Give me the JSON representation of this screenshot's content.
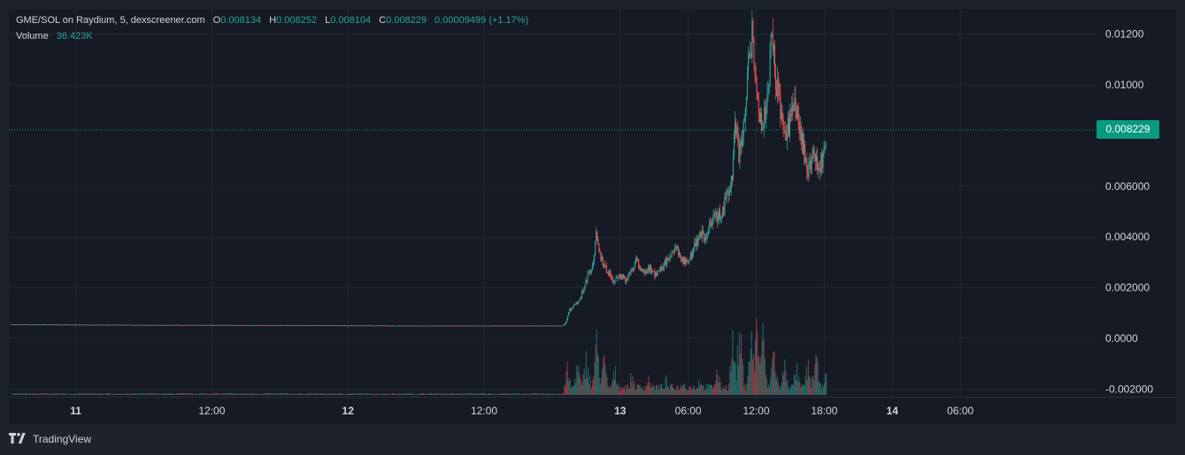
{
  "legend": {
    "title": "GME/SOL on Raydium, 5, dexscreener.com",
    "o_label": "O",
    "o_value": "0.008134",
    "h_label": "H",
    "h_value": "0.008252",
    "l_label": "L",
    "l_value": "0.008104",
    "c_label": "C",
    "c_value": "0.008229",
    "change": "0.00009499 (+1.17%)",
    "volume_label": "Volume",
    "volume_value": "36.423K"
  },
  "last_price": "0.008229",
  "branding": {
    "name": "TradingView",
    "icon": "tradingview-logo-icon"
  },
  "colors": {
    "up": "#26a69a",
    "down": "#ef5350",
    "background": "#161a25",
    "grid": "#232733",
    "axis_text": "#d1d4dc",
    "price_tag": "#089981"
  },
  "chart_data": {
    "type": "candlestick",
    "interval": "5",
    "y_tick_labels": [
      "0.01200",
      "0.01000",
      "0.008229",
      "0.006000",
      "0.004000",
      "0.002000",
      "0.0000",
      "-0.002000"
    ],
    "y_ticks": [
      0.012,
      0.01,
      0.006,
      0.004,
      0.002,
      0.0,
      -0.002
    ],
    "ylim": [
      -0.0023,
      0.013
    ],
    "x_tick_labels": [
      "11",
      "12:00",
      "12",
      "12:00",
      "13",
      "06:00",
      "12:00",
      "18:00",
      "14",
      "06:00"
    ],
    "x_ticks_hours": [
      24,
      36,
      48,
      60,
      72,
      78,
      84,
      90,
      96,
      102
    ],
    "x_range_hours": [
      18.1,
      114
    ],
    "x_bold_labels": [
      "11",
      "12",
      "13",
      "14"
    ],
    "price_path": [
      [
        18.5,
        0.00055
      ],
      [
        30,
        0.00053
      ],
      [
        42,
        0.00052
      ],
      [
        54,
        0.0005
      ],
      [
        66.9,
        0.0005
      ],
      [
        67.2,
        0.0006
      ],
      [
        67.5,
        0.0011
      ],
      [
        68,
        0.0013
      ],
      [
        68.5,
        0.0016
      ],
      [
        68.8,
        0.002
      ],
      [
        69.2,
        0.0026
      ],
      [
        69.7,
        0.003
      ],
      [
        69.9,
        0.0043
      ],
      [
        70.1,
        0.0034
      ],
      [
        70.5,
        0.0029
      ],
      [
        71,
        0.0026
      ],
      [
        71.5,
        0.0022
      ],
      [
        72,
        0.0025
      ],
      [
        72.5,
        0.0023
      ],
      [
        73,
        0.0027
      ],
      [
        73.4,
        0.0031
      ],
      [
        74,
        0.0025
      ],
      [
        74.5,
        0.0028
      ],
      [
        75,
        0.0025
      ],
      [
        75.5,
        0.0027
      ],
      [
        76,
        0.003
      ],
      [
        76.5,
        0.0032
      ],
      [
        77,
        0.0035
      ],
      [
        77.5,
        0.0031
      ],
      [
        78,
        0.003
      ],
      [
        78.5,
        0.0036
      ],
      [
        79,
        0.0041
      ],
      [
        79.5,
        0.004
      ],
      [
        80,
        0.0045
      ],
      [
        80.5,
        0.0048
      ],
      [
        81,
        0.0049
      ],
      [
        81.5,
        0.0058
      ],
      [
        81.9,
        0.0065
      ],
      [
        82.1,
        0.0088
      ],
      [
        82.5,
        0.0072
      ],
      [
        83,
        0.009
      ],
      [
        83.4,
        0.0112
      ],
      [
        83.7,
        0.0122
      ],
      [
        84,
        0.0098
      ],
      [
        84.5,
        0.0082
      ],
      [
        85,
        0.0093
      ],
      [
        85.3,
        0.012
      ],
      [
        85.6,
        0.0108
      ],
      [
        86,
        0.0094
      ],
      [
        86.4,
        0.008
      ],
      [
        87,
        0.0085
      ],
      [
        87.4,
        0.0094
      ],
      [
        87.8,
        0.0082
      ],
      [
        88.2,
        0.0074
      ],
      [
        88.6,
        0.0066
      ],
      [
        89,
        0.0072
      ],
      [
        89.4,
        0.0067
      ],
      [
        89.8,
        0.007
      ],
      [
        90.2,
        0.0082
      ]
    ],
    "volume_peaks": [
      [
        67.3,
        0.35
      ],
      [
        68.2,
        0.45
      ],
      [
        69,
        0.55
      ],
      [
        69.9,
        0.75
      ],
      [
        70.5,
        0.5
      ],
      [
        71.5,
        0.35
      ],
      [
        73,
        0.3
      ],
      [
        74.5,
        0.25
      ],
      [
        76,
        0.22
      ],
      [
        77.5,
        0.2
      ],
      [
        79,
        0.25
      ],
      [
        80.5,
        0.35
      ],
      [
        81.9,
        0.75
      ],
      [
        82.5,
        0.88
      ],
      [
        83.5,
        0.85
      ],
      [
        84,
        1.0
      ],
      [
        84.5,
        0.9
      ],
      [
        85.5,
        0.65
      ],
      [
        86.5,
        0.45
      ],
      [
        87.5,
        0.38
      ],
      [
        88.5,
        0.42
      ],
      [
        89.2,
        0.55
      ],
      [
        90,
        0.3
      ]
    ]
  }
}
